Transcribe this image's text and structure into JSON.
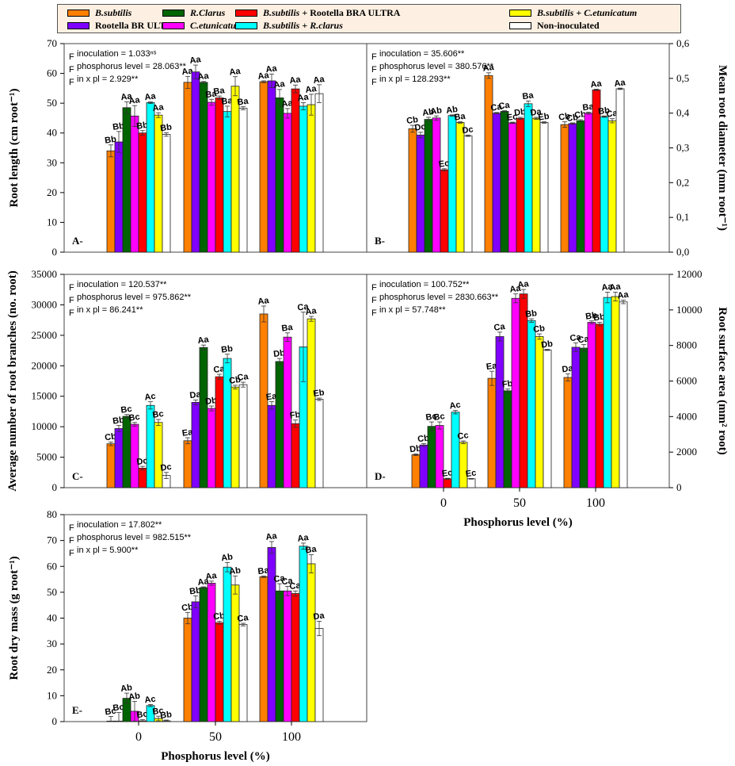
{
  "legend": {
    "items": [
      {
        "key": "bs",
        "label_html": "<i>B.subtilis</i>",
        "color": "#ff7f00"
      },
      {
        "key": "rbu",
        "label_html": "Rootella BR ULTRA",
        "color": "#7f00ff"
      },
      {
        "key": "rc",
        "label_html": "<i>R.Clarus</i>",
        "color": "#006400"
      },
      {
        "key": "ce",
        "label_html": "<i>C.etunicatum</i>",
        "color": "#ff00ff"
      },
      {
        "key": "bsrb",
        "label_html": "<i>B.subtilis</i> + Rootella BRA ULTRA",
        "color": "#ff0000"
      },
      {
        "key": "bsrc",
        "label_html": "<i>B.subtilis</i> + <i>R.clarus</i>",
        "color": "#00ffff"
      },
      {
        "key": "bsce",
        "label_html": "<i>B.subtilis</i> + <i>C.etunicatum</i>",
        "color": "#ffff00"
      },
      {
        "key": "ni",
        "label_html": "Non-inoculated",
        "color": "#ffffff"
      }
    ]
  },
  "chart_data": [
    {
      "id": "A",
      "panel_label": "A-",
      "type": "bar",
      "ylabel": "Root length (cm root⁻¹)",
      "ylabel_side": "left",
      "xlabel": "",
      "ylim": [
        0,
        70
      ],
      "yticks": [
        0,
        10,
        20,
        30,
        40,
        50,
        60,
        70
      ],
      "decimal_comma": false,
      "categories": [
        "0",
        "50",
        "100"
      ],
      "f_stats": [
        "inoculation = 1.033ⁿˢ",
        "phosphorus level = 28.063**",
        "in x pl = 2.929**"
      ],
      "series": [
        {
          "name": "B.subtilis",
          "values": [
            34,
            57,
            57.2
          ],
          "errors": [
            2,
            2,
            0.3
          ],
          "labels": [
            "Bb",
            "Aa",
            "Aa"
          ]
        },
        {
          "name": "Rootella BR ULTRA",
          "values": [
            37,
            60.5,
            57.5
          ],
          "errors": [
            3.5,
            2.3,
            2.3
          ],
          "labels": [
            "Bb",
            "Aa",
            "Aa"
          ]
        },
        {
          "name": "R.Clarus",
          "values": [
            48.5,
            57,
            51.8
          ],
          "errors": [
            2,
            0.3,
            2.8
          ],
          "labels": [
            "Aa",
            "Aa",
            "Aa"
          ]
        },
        {
          "name": "C.etunicatum",
          "values": [
            45.7,
            50.3,
            46.6
          ],
          "errors": [
            3.5,
            1,
            1.6
          ],
          "labels": [
            "Aa",
            "Ba",
            "Aa"
          ]
        },
        {
          "name": "B.subtilis + Rootella BRA ULTRA",
          "values": [
            40,
            51.8,
            54.8
          ],
          "errors": [
            0.8,
            0.6,
            1.3
          ],
          "labels": [
            "Bb",
            "Ba",
            "Aa"
          ]
        },
        {
          "name": "B.subtilis + R.clarus",
          "values": [
            50.2,
            47.2,
            49
          ],
          "errors": [
            0.3,
            1.8,
            1.2
          ],
          "labels": [
            "Aa",
            "Ba",
            "Aa"
          ]
        },
        {
          "name": "B.subtilis + C.etunicatum",
          "values": [
            46,
            55.7,
            49.5
          ],
          "errors": [
            0.8,
            3.2,
            3.5
          ],
          "labels": [
            "Aa",
            "Aa",
            "Aa"
          ]
        },
        {
          "name": "Non-inoculated",
          "values": [
            39.5,
            48.3,
            53.2
          ],
          "errors": [
            0.6,
            0.5,
            3
          ],
          " labels": [
            "Bb",
            "Ba",
            "Aa"
          ]
        }
      ]
    },
    {
      "id": "B",
      "panel_label": "B-",
      "type": "bar",
      "ylabel": "Mean root diameter (mm root⁻¹)",
      "ylabel_side": "right",
      "xlabel": "",
      "ylim": [
        0,
        0.6
      ],
      "yticks": [
        0,
        0.1,
        0.2,
        0.3,
        0.4,
        0.5,
        0.6
      ],
      "decimal_comma": true,
      "categories": [
        "0",
        "50",
        "100"
      ],
      "f_stats": [
        "inoculation = 35.606**",
        "phosphorus level  = 380.576**",
        "in x pl = 128.293**"
      ],
      "series": [
        {
          "name": "B.subtilis",
          "values": [
            0.355,
            0.508,
            0.367
          ],
          "errors": [
            0.01,
            0.008,
            0.008
          ],
          "labels": [
            "Cb",
            "Aa",
            "Cb"
          ]
        },
        {
          "name": "Rootella BR ULTRA",
          "values": [
            0.337,
            0.4,
            0.37
          ],
          "errors": [
            0.008,
            0.002,
            0.002
          ],
          "labels": [
            "Dc",
            "Ca",
            "Cb"
          ]
        },
        {
          "name": "R.Clarus",
          "values": [
            0.382,
            0.405,
            0.378
          ],
          "errors": [
            0.006,
            0.002,
            0.003
          ],
          "labels": [
            "Ab",
            "Ca",
            "Cb"
          ]
        },
        {
          "name": "C.etunicatum",
          "values": [
            0.386,
            0.372,
            0.4
          ],
          "errors": [
            0.006,
            0.002,
            0.003
          ],
          "labels": [
            "Ab",
            "Ec",
            "Ba"
          ]
        },
        {
          "name": "B.subtilis + Rootella BRA ULTRA",
          "values": [
            0.237,
            0.385,
            0.467
          ],
          "errors": [
            0.003,
            0.003,
            0.002
          ],
          "labels": [
            "Ec",
            "Db",
            "Aa"
          ]
        },
        {
          "name": "B.subtilis + R.clarus",
          "values": [
            0.393,
            0.427,
            0.39
          ],
          "errors": [
            0.002,
            0.008,
            0.002
          ],
          "labels": [
            "Ab",
            "Ba",
            "Bb"
          ]
        },
        {
          "name": "B.subtilis + C.etunicatum",
          "values": [
            0.373,
            0.385,
            0.378
          ],
          "errors": [
            0.002,
            0.003,
            0.006
          ],
          "labels": [
            "Ba",
            "Da",
            "Ca"
          ]
        },
        {
          "name": "Non-inoculated",
          "values": [
            0.335,
            0.373,
            0.47
          ],
          "errors": [
            0.002,
            0.002,
            0.002
          ],
          "labels": [
            "Dc",
            "Eb",
            "Aa"
          ]
        }
      ]
    },
    {
      "id": "C",
      "panel_label": "C-",
      "type": "bar",
      "ylabel": "Average number of root branches (no. root)",
      "ylabel_side": "left",
      "xlabel": "",
      "ylim": [
        0,
        35000
      ],
      "yticks": [
        0,
        5000,
        10000,
        15000,
        20000,
        25000,
        30000,
        35000
      ],
      "decimal_comma": false,
      "categories": [
        "0",
        "50",
        "100"
      ],
      "f_stats": [
        "inoculation = 120.537**",
        "phosphorus level  = 975.862**",
        "in x pl = 86.241**"
      ],
      "series": [
        {
          "name": "B.subtilis",
          "values": [
            7200,
            7700,
            28500
          ],
          "errors": [
            300,
            500,
            1300
          ],
          "labels": [
            "Cb",
            "Ea",
            "Aa"
          ]
        },
        {
          "name": "Rootella BR ULTRA",
          "values": [
            9700,
            14000,
            13500
          ],
          "errors": [
            500,
            400,
            600
          ],
          "labels": [
            "Bb",
            "Da",
            "Ea"
          ]
        },
        {
          "name": "R.Clarus",
          "values": [
            11700,
            23000,
            20700
          ],
          "errors": [
            300,
            400,
            500
          ],
          "labels": [
            "Bc",
            "Aa",
            "Db"
          ]
        },
        {
          "name": "C.etunicatum",
          "values": [
            10400,
            13000,
            24700
          ],
          "errors": [
            300,
            400,
            700
          ],
          "labels": [
            "Bc",
            "Db",
            "Ba"
          ]
        },
        {
          "name": "B.subtilis + Rootella BRA ULTRA",
          "values": [
            3200,
            18200,
            10500
          ],
          "errors": [
            300,
            400,
            600
          ],
          "labels": [
            "Dc",
            "Ca",
            "Fb"
          ]
        },
        {
          "name": "B.subtilis + R.clarus",
          "values": [
            13500,
            21200,
            23100
          ],
          "errors": [
            600,
            700,
            5700
          ],
          "labels": [
            "Ac",
            "Bb",
            "Ca"
          ]
        },
        {
          "name": "B.subtilis + C.etunicatum",
          "values": [
            10700,
            16500,
            27700
          ],
          "errors": [
            500,
            300,
            400
          ],
          "labels": [
            "Bc",
            "Cb",
            "Aa"
          ]
        },
        {
          "name": "Non-inoculated",
          "values": [
            2000,
            16900,
            14500
          ],
          "errors": [
            500,
            400,
            200
          ],
          "labels": [
            "Dc",
            "Ca",
            "Eb"
          ]
        }
      ]
    },
    {
      "id": "D",
      "panel_label": "D-",
      "type": "bar",
      "ylabel": "Root surface area (mm² root)",
      "ylabel_side": "right",
      "xlabel": "Phosphorus level (%)",
      "ylim": [
        0,
        12000
      ],
      "yticks": [
        0,
        2000,
        4000,
        6000,
        8000,
        10000,
        12000
      ],
      "decimal_comma": false,
      "categories": [
        "0",
        "50",
        "100"
      ],
      "f_stats": [
        "inoculation = 100.752**",
        "phosphorus level  = 2830.663**",
        "in x pl = 57.748**"
      ],
      "series": [
        {
          "name": "B.subtilis",
          "values": [
            1850,
            6150,
            6200
          ],
          "errors": [
            50,
            400,
            200
          ],
          "labels": [
            "Db",
            "Ea",
            "Da"
          ]
        },
        {
          "name": "Rootella BR ULTRA",
          "values": [
            2400,
            8500,
            7900
          ],
          "errors": [
            80,
            250,
            250
          ],
          "labels": [
            "Cb",
            "Ca",
            "Ca"
          ]
        },
        {
          "name": "R.Clarus",
          "values": [
            3450,
            5450,
            7850
          ],
          "errors": [
            250,
            100,
            200
          ],
          "labels": [
            "Bc",
            "Fb",
            "Ca"
          ]
        },
        {
          "name": "C.etunicatum",
          "values": [
            3500,
            10650,
            9300
          ],
          "errors": [
            200,
            250,
            80
          ],
          "labels": [
            "Bc",
            "Aa",
            "Bb"
          ]
        },
        {
          "name": "B.subtilis + Rootella BRA ULTRA",
          "values": [
            500,
            10900,
            9200
          ],
          "errors": [
            30,
            250,
            100
          ],
          "labels": [
            "Ec",
            "Aa",
            "Bb"
          ]
        },
        {
          "name": "B.subtilis + R.clarus",
          "values": [
            4250,
            9400,
            10700
          ],
          "errors": [
            100,
            100,
            300
          ],
          "labels": [
            "Ac",
            "Bb",
            "Aa"
          ]
        },
        {
          "name": "B.subtilis + C.etunicatum",
          "values": [
            2550,
            8500,
            10750
          ],
          "errors": [
            80,
            150,
            250
          ],
          "labels": [
            "Cc",
            "Cb",
            "Aa"
          ]
        },
        {
          "name": "Non-inoculated",
          "values": [
            500,
            7750,
            10450
          ],
          "errors": [
            20,
            30,
            100
          ],
          "labels": [
            "Ec",
            "Db",
            "Aa"
          ]
        }
      ]
    },
    {
      "id": "E",
      "panel_label": "E-",
      "type": "bar",
      "ylabel": "Root dry mass (g root⁻¹)",
      "ylabel_side": "left",
      "xlabel": "Phosphorus level (%)",
      "ylim": [
        0,
        80
      ],
      "yticks": [
        0,
        10,
        20,
        30,
        40,
        50,
        60,
        70,
        80
      ],
      "decimal_comma": false,
      "categories": [
        "0",
        "50",
        "100"
      ],
      "f_stats": [
        "inoculation = 17.802**",
        "phosphorus level  = 982.515**",
        "in x pl = 5.900**"
      ],
      "series": [
        {
          "name": "B.subtilis",
          "values": [
            0.2,
            40,
            56
          ],
          "errors": [
            1.8,
            2.2,
            0.3
          ],
          "labels": [
            "Bc",
            "Cb",
            "Ba"
          ]
        },
        {
          "name": "Rootella BR ULTRA",
          "values": [
            0.2,
            46.3,
            67.3
          ],
          "errors": [
            3.3,
            2.3,
            2.3
          ],
          "labels": [
            "Bc",
            "Bb",
            "Aa"
          ]
        },
        {
          "name": "R.Clarus",
          "values": [
            9,
            51.8,
            50.5
          ],
          "errors": [
            2,
            0.3,
            2.8
          ],
          "labels": [
            "Ab",
            "Aa",
            "Ca"
          ]
        },
        {
          "name": "C.etunicatum",
          "values": [
            4,
            53.5,
            50.5
          ],
          "errors": [
            3.8,
            0.8,
            1.8
          ],
          "labels": [
            "Ab",
            "Aa",
            "Ca"
          ]
        },
        {
          "name": "B.subtilis + Rootella BRA ULTRA",
          "values": [
            0.3,
            38.2,
            49.5
          ],
          "errors": [
            0.5,
            0.6,
            1
          ],
          "labels": [
            "Bc",
            "Cb",
            "Ca"
          ]
        },
        {
          "name": "B.subtilis + R.clarus",
          "values": [
            6.2,
            59.7,
            67.8
          ],
          "errors": [
            0.4,
            1.8,
            1.2
          ],
          "labels": [
            "Ac",
            "Ab",
            "Aa"
          ]
        },
        {
          "name": "B.subtilis + C.etunicatum",
          "values": [
            1.2,
            52.8,
            61
          ],
          "errors": [
            0.9,
            3.5,
            3.5
          ],
          "labels": [
            "Bc",
            "Ab",
            "Ba"
          ]
        },
        {
          "name": "Non-inoculated",
          "values": [
            0.3,
            37.5,
            36
          ],
          "errors": [
            0.3,
            0.5,
            2.8
          ],
          "labels": [
            "Bb",
            "Ca",
            "Da"
          ]
        }
      ]
    }
  ]
}
